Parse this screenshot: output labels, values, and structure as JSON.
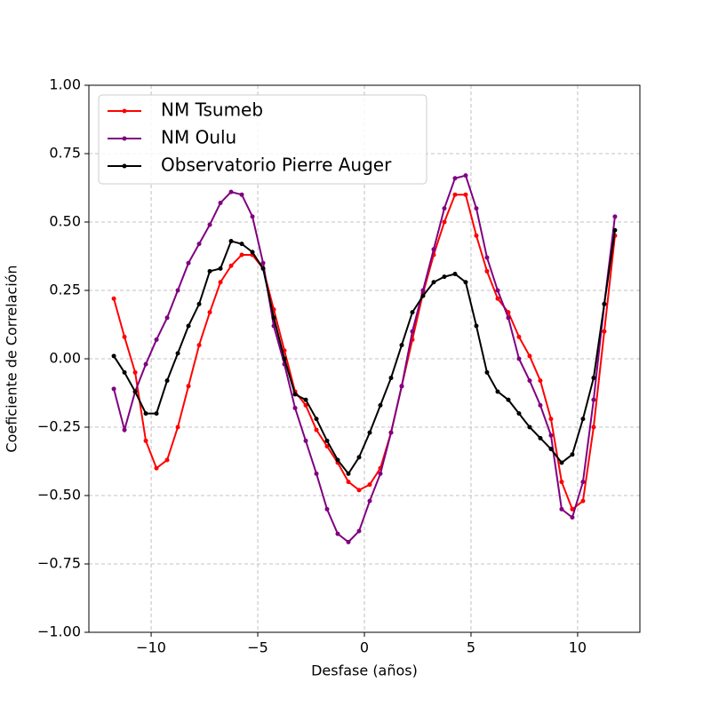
{
  "chart_data": {
    "type": "line",
    "xlabel": "Desfase (años)",
    "ylabel": "Coeficiente de Correlación",
    "x": [
      -11.75,
      -11.25,
      -10.75,
      -10.25,
      -9.75,
      -9.25,
      -8.75,
      -8.25,
      -7.75,
      -7.25,
      -6.75,
      -6.25,
      -5.75,
      -5.25,
      -4.75,
      -4.25,
      -3.75,
      -3.25,
      -2.75,
      -2.25,
      -1.75,
      -1.25,
      -0.75,
      -0.25,
      0.25,
      0.75,
      1.25,
      1.75,
      2.25,
      2.75,
      3.25,
      3.75,
      4.25,
      4.75,
      5.25,
      5.75,
      6.25,
      6.75,
      7.25,
      7.75,
      8.25,
      8.75,
      9.25,
      9.75,
      10.25,
      10.75,
      11.25,
      11.75
    ],
    "series": [
      {
        "name": "NM Tsumeb",
        "color": "#ff0000",
        "values": [
          0.22,
          0.08,
          -0.05,
          -0.3,
          -0.4,
          -0.37,
          -0.25,
          -0.1,
          0.05,
          0.17,
          0.28,
          0.34,
          0.38,
          0.38,
          0.33,
          0.18,
          0.03,
          -0.12,
          -0.17,
          -0.26,
          -0.32,
          -0.38,
          -0.45,
          -0.48,
          -0.46,
          -0.4,
          -0.27,
          -0.1,
          0.07,
          0.24,
          0.38,
          0.5,
          0.6,
          0.6,
          0.45,
          0.32,
          0.22,
          0.17,
          0.08,
          0.01,
          -0.08,
          -0.22,
          -0.45,
          -0.55,
          -0.52,
          -0.25,
          0.1,
          0.45
        ]
      },
      {
        "name": "NM Oulu",
        "color": "#800080",
        "values": [
          -0.11,
          -0.26,
          -0.12,
          -0.02,
          0.07,
          0.15,
          0.25,
          0.35,
          0.42,
          0.49,
          0.57,
          0.61,
          0.6,
          0.52,
          0.35,
          0.12,
          -0.02,
          -0.18,
          -0.3,
          -0.42,
          -0.55,
          -0.64,
          -0.67,
          -0.63,
          -0.52,
          -0.42,
          -0.27,
          -0.1,
          0.1,
          0.25,
          0.4,
          0.55,
          0.66,
          0.67,
          0.55,
          0.37,
          0.25,
          0.15,
          0.0,
          -0.08,
          -0.17,
          -0.28,
          -0.55,
          -0.58,
          -0.45,
          -0.15,
          0.2,
          0.52
        ]
      },
      {
        "name": "Observatorio Pierre Auger",
        "color": "#000000",
        "values": [
          0.01,
          -0.05,
          -0.12,
          -0.2,
          -0.2,
          -0.08,
          0.02,
          0.12,
          0.2,
          0.32,
          0.33,
          0.43,
          0.42,
          0.39,
          0.33,
          0.15,
          0.0,
          -0.13,
          -0.15,
          -0.22,
          -0.3,
          -0.37,
          -0.42,
          -0.36,
          -0.27,
          -0.17,
          -0.07,
          0.05,
          0.17,
          0.23,
          0.28,
          0.3,
          0.31,
          0.28,
          0.12,
          -0.05,
          -0.12,
          -0.15,
          -0.2,
          -0.25,
          -0.29,
          -0.33,
          -0.38,
          -0.35,
          -0.22,
          -0.07,
          0.2,
          0.47
        ]
      }
    ],
    "xlim": [
      -12.92,
      12.92
    ],
    "ylim": [
      -1,
      1
    ],
    "xticks": [
      {
        "value": -10,
        "label": "−10"
      },
      {
        "value": -5,
        "label": "−5"
      },
      0,
      5,
      10
    ],
    "yticks": [
      {
        "value": -1,
        "label": "−1.00"
      },
      {
        "value": -0.75,
        "label": "−0.75"
      },
      {
        "value": -0.5,
        "label": "−0.50"
      },
      {
        "value": -0.25,
        "label": "−0.25"
      },
      {
        "value": 0,
        "label": "0.00"
      },
      {
        "value": 0.25,
        "label": "0.25"
      },
      {
        "value": 0.5,
        "label": "0.50"
      },
      {
        "value": 0.75,
        "label": "0.75"
      },
      {
        "value": 1,
        "label": "1.00"
      }
    ],
    "grid": true,
    "legend": "upper-left"
  }
}
